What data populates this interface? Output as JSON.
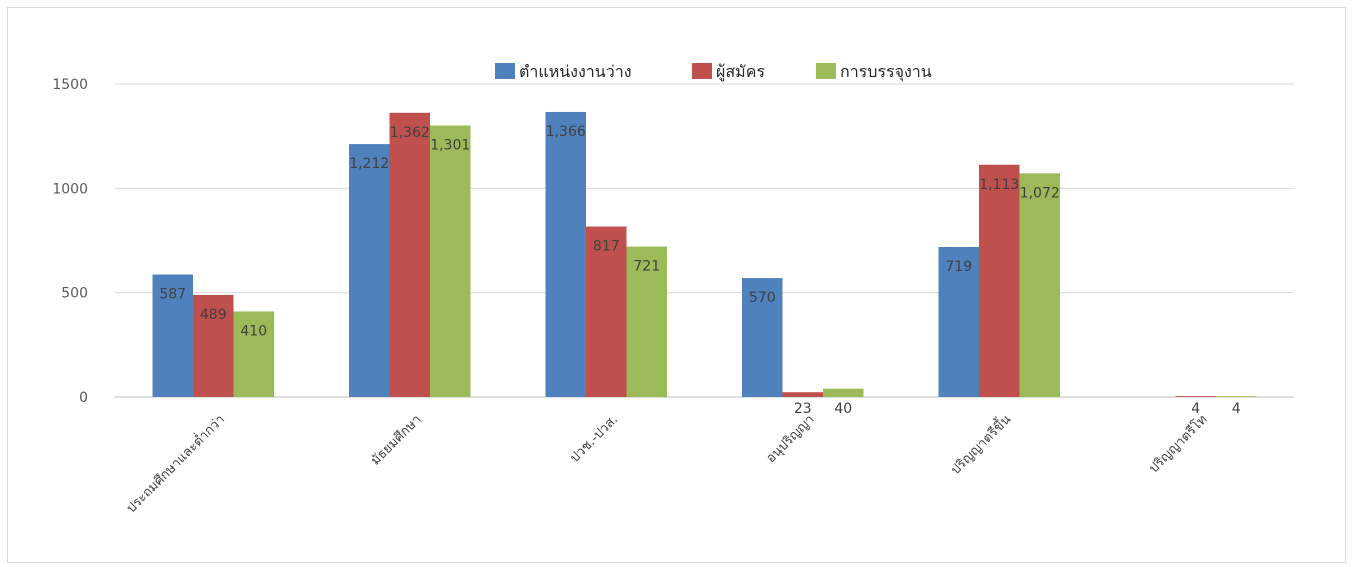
{
  "chart_data": {
    "type": "bar",
    "categories": [
      "ประถมศึกษาและต่ำกว่า",
      "มัธยมศึกษา",
      "ปวช.-ปวส.",
      "อนุปริญญา",
      "ปริญญาตรีขึ้น",
      "ปริญญาตรีโท"
    ],
    "series": [
      {
        "name": "ตำแหน่งงานว่าง",
        "color": "#4f81bd",
        "values": [
          587,
          1212,
          1366,
          570,
          719,
          null
        ],
        "labels": [
          "587",
          "1,212",
          "1,366",
          "570",
          "719",
          ""
        ]
      },
      {
        "name": "ผู้สมัคร",
        "color": "#c0504d",
        "values": [
          489,
          1362,
          817,
          23,
          1113,
          4
        ],
        "labels": [
          "489",
          "1,362",
          "817",
          "23",
          "1,113",
          "4"
        ]
      },
      {
        "name": "การบรรจุงาน",
        "color": "#9bbb59",
        "values": [
          410,
          1301,
          721,
          40,
          1072,
          4
        ],
        "labels": [
          "410",
          "1,301",
          "721",
          "40",
          "1,072",
          "4"
        ]
      }
    ],
    "yticks": [
      "0",
      "500",
      "1000",
      "1500"
    ],
    "ylim": [
      0,
      1500
    ],
    "title": "",
    "xlabel": "",
    "ylabel": "",
    "grid": true,
    "legend_position": "top"
  }
}
